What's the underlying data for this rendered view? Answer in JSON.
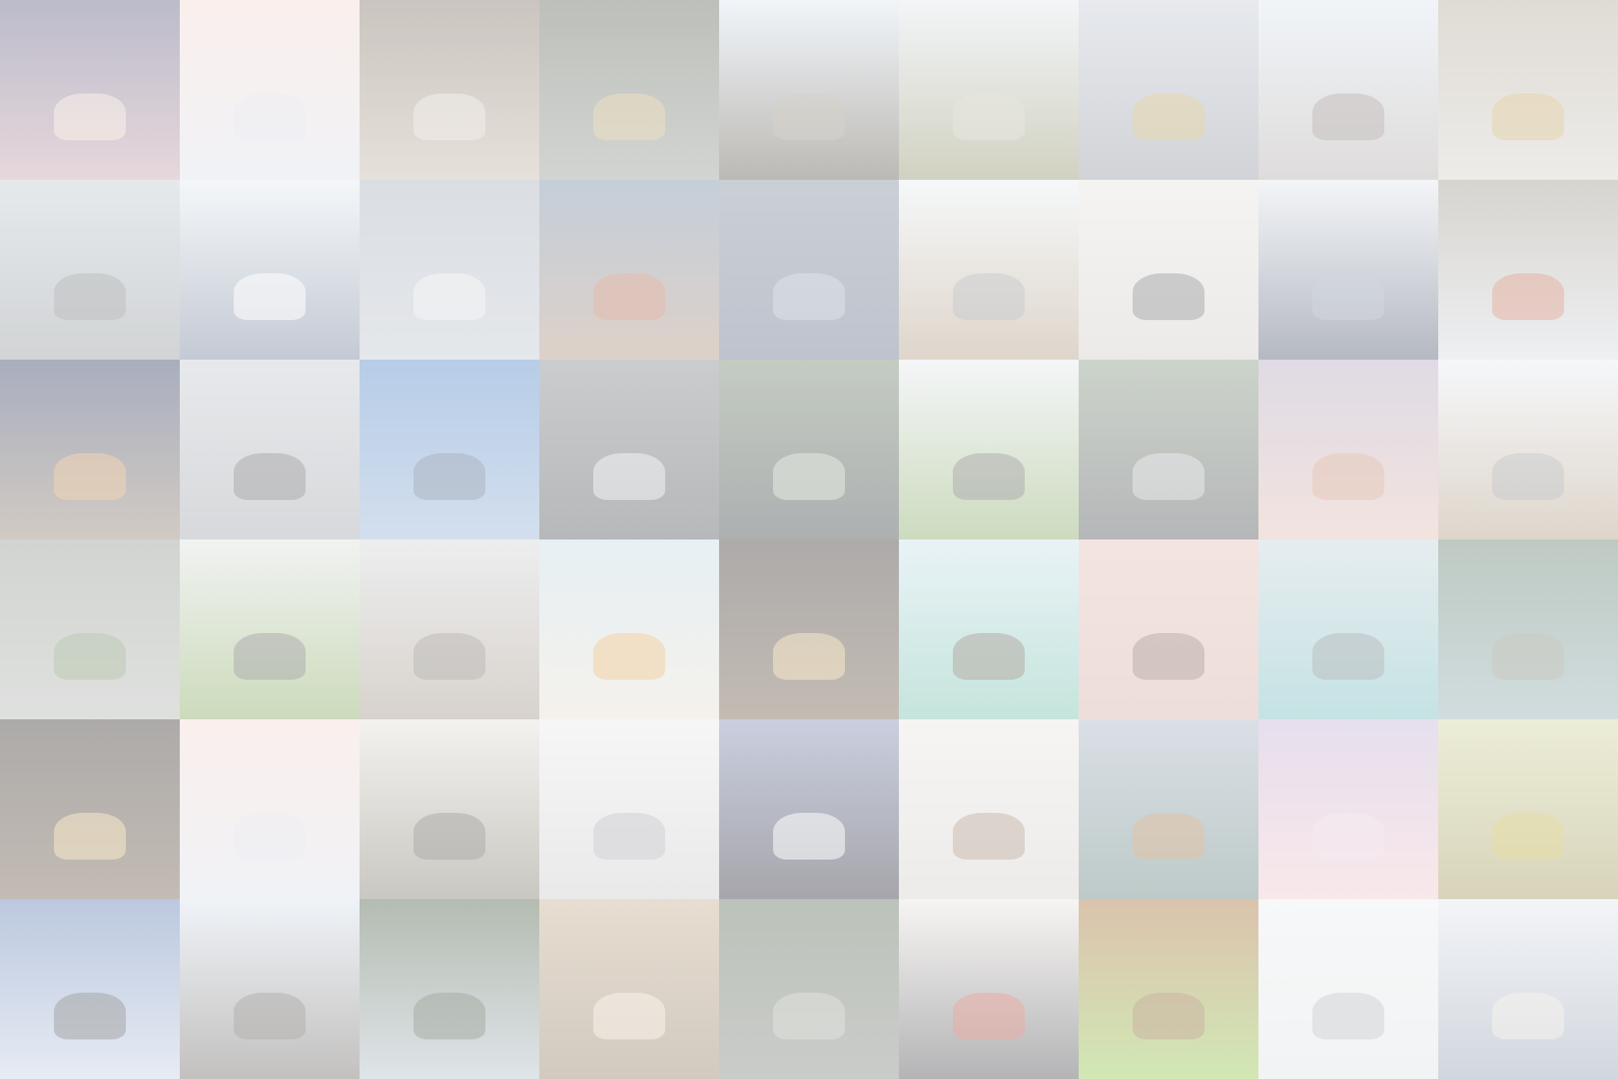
{
  "mosaic": {
    "tiles": [
      {
        "subject": "aerial-tent-icon",
        "top": "#6a6a8a",
        "bottom": "#c9a7b0",
        "accent": "#f2e2d0"
      },
      {
        "subject": "misty-sea-icon",
        "top": "#f3dcd6",
        "bottom": "#dfe2ea",
        "accent": "#d9d9e3"
      },
      {
        "subject": "city-building-icon",
        "top": "#8a7e72",
        "bottom": "#c9bcae",
        "accent": "#e3dbd0"
      },
      {
        "subject": "rainy-window-icon",
        "top": "#6d7466",
        "bottom": "#9aa19a",
        "accent": "#d8b87a"
      },
      {
        "subject": "railroad-track-icon",
        "top": "#dfe9f2",
        "bottom": "#6b655a",
        "accent": "#a49a8a"
      },
      {
        "subject": "grassy-hill-icon",
        "top": "#e4e9ee",
        "bottom": "#9a9a78",
        "accent": "#c9c9b8"
      },
      {
        "subject": "race-medal-icon",
        "top": "#c9cfd8",
        "bottom": "#9a9ea8",
        "accent": "#c9a84a"
      },
      {
        "subject": "swing-silhouette-icon",
        "top": "#dfe7f0",
        "bottom": "#b7b2b0",
        "accent": "#7d736d"
      },
      {
        "subject": "river-rafting-icon",
        "top": "#b9b0a2",
        "bottom": "#d7d4cc",
        "accent": "#c9a04a"
      },
      {
        "subject": "vintage-van-icon",
        "top": "#c8cfd4",
        "bottom": "#9aa0a4",
        "accent": "#6f7478"
      },
      {
        "subject": "calm-ocean-icon",
        "top": "#e6ecf2",
        "bottom": "#7d8aa0",
        "accent": "#ffffff"
      },
      {
        "subject": "snowy-mountain-icon",
        "top": "#aeb5c0",
        "bottom": "#c4cad2",
        "accent": "#e9ecef"
      },
      {
        "subject": "camper-van-icon",
        "top": "#7f93ac",
        "bottom": "#b29a86",
        "accent": "#c46a4a"
      },
      {
        "subject": "swimmer-icon",
        "top": "#8b96a6",
        "bottom": "#6f7c90",
        "accent": "#b8c2cf"
      },
      {
        "subject": "rocky-coast-icon",
        "top": "#e9eef2",
        "bottom": "#b7a48c",
        "accent": "#8a8f98"
      },
      {
        "subject": "phone-photo-icon",
        "top": "#e8e6e4",
        "bottom": "#d6d0cc",
        "accent": "#4c4c52"
      },
      {
        "subject": "hot-air-balloons-icon",
        "top": "#e4e9ef",
        "bottom": "#5b6478",
        "accent": "#9aa4b6"
      },
      {
        "subject": "rock-climber-icon",
        "top": "#a7a196",
        "bottom": "#d9dde2",
        "accent": "#c65a3a"
      },
      {
        "subject": "night-camper-icon",
        "top": "#3f4d6e",
        "bottom": "#9a8a7a",
        "accent": "#e3a25a"
      },
      {
        "subject": "motorcycle-icon",
        "top": "#c9ced4",
        "bottom": "#a8aab0",
        "accent": "#4a4a4e"
      },
      {
        "subject": "lake-wader-icon",
        "top": "#5f8fcc",
        "bottom": "#9db8d8",
        "accent": "#4a5a74"
      },
      {
        "subject": "dog-canoe-icon",
        "top": "#8a8f94",
        "bottom": "#5e6266",
        "accent": "#e6e6e6"
      },
      {
        "subject": "flashlight-night-icon",
        "top": "#7d8e7a",
        "bottom": "#4a4f52",
        "accent": "#c7d6c0"
      },
      {
        "subject": "boulder-field-icon",
        "top": "#e7eaee",
        "bottom": "#8fb070",
        "accent": "#505050"
      },
      {
        "subject": "car-window-feet-icon",
        "top": "#8fa08c",
        "bottom": "#5b5f62",
        "accent": "#d0d2d4"
      },
      {
        "subject": "glass-shard-icon",
        "top": "#b8aec4",
        "bottom": "#e3c2b8",
        "accent": "#c9866a"
      },
      {
        "subject": "rocky-coast-icon",
        "top": "#e9eef2",
        "bottom": "#b7a48c",
        "accent": "#8a8f98"
      },
      {
        "subject": "rainy-walkway-icon",
        "top": "#9aa09a",
        "bottom": "#b9bcb8",
        "accent": "#6f8a5a"
      },
      {
        "subject": "boulder-meadow-icon",
        "top": "#dfe4e0",
        "bottom": "#8fae6a",
        "accent": "#4f4f4f"
      },
      {
        "subject": "foggy-beach-icon",
        "top": "#d7d9dc",
        "bottom": "#a89c8e",
        "accent": "#6f6a62"
      },
      {
        "subject": "surfboards-beach-icon",
        "top": "#c8dde6",
        "bottom": "#e8e0d4",
        "accent": "#e39a3a"
      },
      {
        "subject": "string-lights-street-icon",
        "top": "#4a4442",
        "bottom": "#7a6a5a",
        "accent": "#f3d08a"
      },
      {
        "subject": "sea-turtle-icon",
        "top": "#cfe4ec",
        "bottom": "#7fc4b2",
        "accent": "#5a4a3a"
      },
      {
        "subject": "pink-wall-climber-icon",
        "top": "#e6c4bc",
        "bottom": "#d9b6ae",
        "accent": "#6a5048"
      },
      {
        "subject": "mountain-lake-icon",
        "top": "#c9d6de",
        "bottom": "#7ec0c2",
        "accent": "#6a7276"
      },
      {
        "subject": "forest-lake-icon",
        "top": "#6f8a78",
        "bottom": "#9ab2b8",
        "accent": "#8a8a78"
      },
      {
        "subject": "string-lights-street-icon",
        "top": "#4a4442",
        "bottom": "#7a6a5a",
        "accent": "#f3d08a"
      },
      {
        "subject": "misty-sea-icon",
        "top": "#f3dcd6",
        "bottom": "#dfe2ea",
        "accent": "#d9d9e3"
      },
      {
        "subject": "bicycle-street-icon",
        "top": "#e6e2da",
        "bottom": "#8a8478",
        "accent": "#4c4a46"
      },
      {
        "subject": "foggy-shore-icon",
        "top": "#ecebec",
        "bottom": "#cfcfd2",
        "accent": "#9a9aa2"
      },
      {
        "subject": "concert-lights-icon",
        "top": "#8a94b8",
        "bottom": "#3a3a46",
        "accent": "#ffffff"
      },
      {
        "subject": "instant-camera-icon",
        "top": "#ece8e4",
        "bottom": "#d8d4d0",
        "accent": "#8a6a52"
      },
      {
        "subject": "hiker-mountain-icon",
        "top": "#aeb9c8",
        "bottom": "#6d8a86",
        "accent": "#c07a3a"
      },
      {
        "subject": "pastel-sky-icon",
        "top": "#c8b8d8",
        "bottom": "#f0ccd0",
        "accent": "#e8d4e0"
      },
      {
        "subject": "autumn-forest-icon",
        "top": "#d6d8a8",
        "bottom": "#a8a068",
        "accent": "#c7b43a"
      },
      {
        "subject": "cliff-jumper-icon",
        "top": "#6a86b8",
        "bottom": "#c9d4e6",
        "accent": "#3a3a3a"
      },
      {
        "subject": "fjord-cliff-icon",
        "top": "#dce4ee",
        "bottom": "#7a7672",
        "accent": "#5a5450"
      },
      {
        "subject": "leafy-arch-icon",
        "top": "#5a6a54",
        "bottom": "#b8c4cc",
        "accent": "#3d4a38"
      },
      {
        "subject": "reading-room-icon",
        "top": "#c9b49a",
        "bottom": "#9c8a72",
        "accent": "#efe6d6"
      },
      {
        "subject": "canyon-hiker-icon",
        "top": "#6a7a66",
        "bottom": "#8a8e88",
        "accent": "#b9c0b4"
      },
      {
        "subject": "red-truck-road-icon",
        "top": "#ece8e4",
        "bottom": "#5a5a5e",
        "accent": "#d04a3a"
      },
      {
        "subject": "sleeping-dog-icon",
        "top": "#b07a4a",
        "bottom": "#9acb5a",
        "accent": "#8a5a34"
      },
      {
        "subject": "skateboard-icon",
        "top": "#eceff2",
        "bottom": "#e2e4e6",
        "accent": "#9aa0a6"
      },
      {
        "subject": "rowboat-bay-icon",
        "top": "#e4e8ee",
        "bottom": "#9aa6b6",
        "accent": "#e8e2d6"
      }
    ]
  },
  "overlay": {
    "color": "#ffffff",
    "opacity": 0.55
  }
}
